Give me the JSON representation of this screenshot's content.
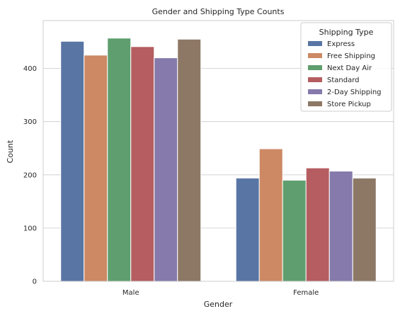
{
  "chart_data": {
    "type": "bar",
    "title": "Gender and Shipping Type Counts",
    "xlabel": "Gender",
    "ylabel": "Count",
    "categories": [
      "Male",
      "Female"
    ],
    "ylim": [
      0,
      490
    ],
    "yticks": [
      0,
      100,
      200,
      300,
      400
    ],
    "grid": "horizontal",
    "legend": {
      "title": "Shipping Type",
      "placement": "top-right"
    },
    "series": [
      {
        "name": "Express",
        "color": "#5875a4",
        "values": [
          451,
          194
        ]
      },
      {
        "name": "Free Shipping",
        "color": "#cc8963",
        "values": [
          425,
          249
        ]
      },
      {
        "name": "Next Day Air",
        "color": "#5f9e6e",
        "values": [
          457,
          190
        ]
      },
      {
        "name": "Standard",
        "color": "#b55d60",
        "values": [
          441,
          213
        ]
      },
      {
        "name": "2-Day Shipping",
        "color": "#857aab",
        "values": [
          420,
          207
        ]
      },
      {
        "name": "Store Pickup",
        "color": "#8d7866",
        "values": [
          455,
          194
        ]
      }
    ]
  }
}
